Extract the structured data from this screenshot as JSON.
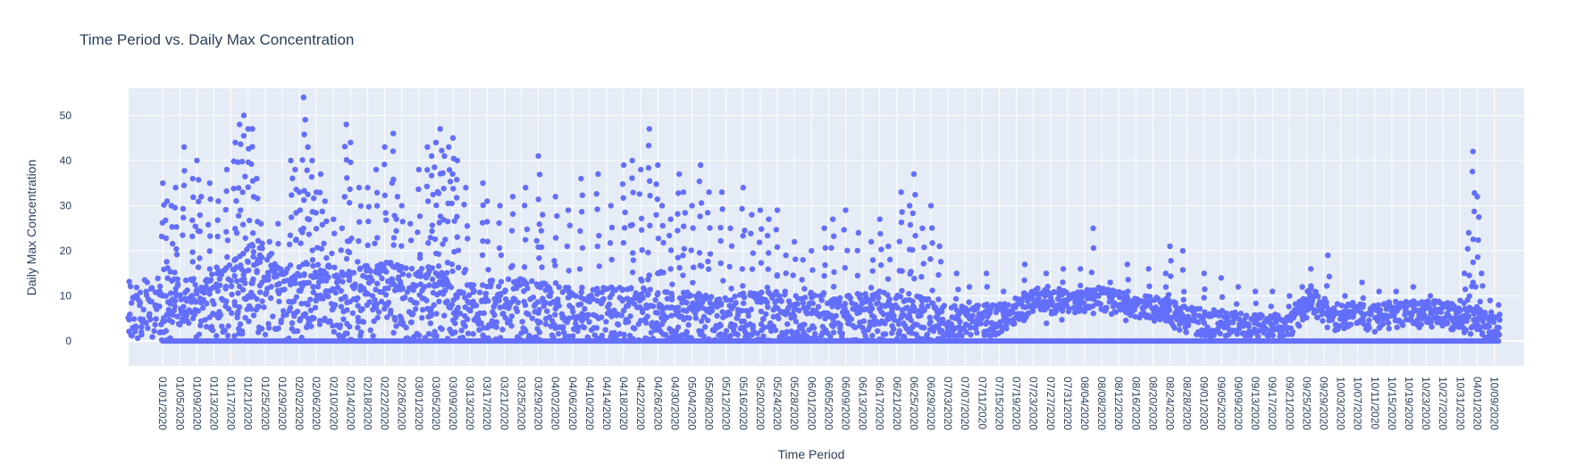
{
  "colors": {
    "plot_bg": "#e5ecf6",
    "grid": "#ffffff",
    "marker": "#636efa",
    "text": "#2a3f5f"
  },
  "chart_data": {
    "type": "scatter",
    "title": "Time Period vs. Daily Max Concentration",
    "xlabel": "Time Period",
    "ylabel": "Daily Max Concentration",
    "x_type": "date",
    "x_range": [
      "2019-12-24",
      "2020-11-15"
    ],
    "ylim": [
      -5.5,
      56
    ],
    "y_ticks": [
      0,
      10,
      20,
      30,
      40,
      50
    ],
    "grid": true,
    "legend": "none",
    "x_tick_labels": [
      "01/01/2020",
      "01/05/2020",
      "01/09/2020",
      "01/13/2020",
      "01/17/2020",
      "01/21/2020",
      "01/25/2020",
      "01/29/2020",
      "02/02/2020",
      "02/06/2020",
      "02/10/2020",
      "02/14/2020",
      "02/18/2020",
      "02/22/2020",
      "02/26/2020",
      "03/01/2020",
      "03/05/2020",
      "03/09/2020",
      "03/13/2020",
      "03/17/2020",
      "03/21/2020",
      "03/25/2020",
      "03/29/2020",
      "04/02/2020",
      "04/06/2020",
      "04/10/2020",
      "04/14/2020",
      "04/18/2020",
      "04/22/2020",
      "04/26/2020",
      "04/30/2020",
      "05/04/2020",
      "05/08/2020",
      "05/12/2020",
      "05/16/2020",
      "05/20/2020",
      "05/24/2020",
      "05/28/2020",
      "06/01/2020",
      "06/05/2020",
      "06/09/2020",
      "06/13/2020",
      "06/17/2020",
      "06/21/2020",
      "06/25/2020",
      "06/29/2020",
      "07/03/2020",
      "07/07/2020",
      "07/11/2020",
      "07/15/2020",
      "07/19/2020",
      "07/23/2020",
      "07/27/2020",
      "07/31/2020",
      "08/04/2020",
      "08/08/2020",
      "08/12/2020",
      "08/16/2020",
      "08/20/2020",
      "08/24/2020",
      "08/28/2020",
      "09/01/2020",
      "09/05/2020",
      "09/09/2020",
      "09/13/2020",
      "09/17/2020",
      "09/21/2020",
      "09/25/2020",
      "09/29/2020",
      "10/03/2020",
      "10/07/2020",
      "10/11/2020",
      "10/15/2020",
      "10/19/2020",
      "10/23/2020",
      "10/27/2020",
      "10/31/2020",
      "04/01/2020",
      "10/09/2020"
    ],
    "upper_series": {
      "x": [
        "2020-01-01",
        "2020-01-02",
        "2020-01-03",
        "2020-01-04",
        "2020-01-06",
        "2020-01-08",
        "2020-01-09",
        "2020-01-10",
        "2020-01-12",
        "2020-01-14",
        "2020-01-16",
        "2020-01-18",
        "2020-01-19",
        "2020-01-20",
        "2020-01-21",
        "2020-01-22",
        "2020-01-23",
        "2020-01-24",
        "2020-01-26",
        "2020-01-28",
        "2020-01-31",
        "2020-02-01",
        "2020-02-02",
        "2020-02-03",
        "2020-02-04",
        "2020-02-05",
        "2020-02-06",
        "2020-02-07",
        "2020-02-08",
        "2020-02-10",
        "2020-02-12",
        "2020-02-13",
        "2020-02-14",
        "2020-02-16",
        "2020-02-18",
        "2020-02-20",
        "2020-02-22",
        "2020-02-24",
        "2020-02-25",
        "2020-02-26",
        "2020-02-28",
        "2020-03-01",
        "2020-03-03",
        "2020-03-04",
        "2020-03-05",
        "2020-03-06",
        "2020-03-07",
        "2020-03-08",
        "2020-03-09",
        "2020-03-10",
        "2020-03-12",
        "2020-03-16",
        "2020-03-17",
        "2020-03-20",
        "2020-03-23",
        "2020-03-26",
        "2020-03-29",
        "2020-03-30",
        "2020-04-02",
        "2020-04-05",
        "2020-04-08",
        "2020-04-12",
        "2020-04-15",
        "2020-04-18",
        "2020-04-20",
        "2020-04-22",
        "2020-04-24",
        "2020-04-26",
        "2020-04-27",
        "2020-04-29",
        "2020-05-01",
        "2020-05-02",
        "2020-05-04",
        "2020-05-06",
        "2020-05-08",
        "2020-05-11",
        "2020-05-13",
        "2020-05-16",
        "2020-05-18",
        "2020-05-20",
        "2020-05-22",
        "2020-05-24",
        "2020-05-26",
        "2020-05-28",
        "2020-05-30",
        "2020-06-01",
        "2020-06-04",
        "2020-06-06",
        "2020-06-09",
        "2020-06-12",
        "2020-06-15",
        "2020-06-17",
        "2020-06-19",
        "2020-06-22",
        "2020-06-24",
        "2020-06-25",
        "2020-06-27",
        "2020-06-29",
        "2020-07-01",
        "2020-07-05",
        "2020-07-08",
        "2020-07-12",
        "2020-07-16",
        "2020-07-21",
        "2020-07-26",
        "2020-07-30",
        "2020-08-03",
        "2020-08-06",
        "2020-08-10",
        "2020-08-14",
        "2020-08-19",
        "2020-08-23",
        "2020-08-24",
        "2020-08-27",
        "2020-09-01",
        "2020-09-05",
        "2020-09-09",
        "2020-09-13",
        "2020-09-17",
        "2020-09-21",
        "2020-09-24",
        "2020-09-26",
        "2020-09-30",
        "2020-10-04",
        "2020-10-08",
        "2020-10-12",
        "2020-10-16",
        "2020-10-20",
        "2020-10-24",
        "2020-10-28",
        "2020-10-31",
        "2020-11-01",
        "2020-11-02",
        "2020-11-03",
        "2020-11-04",
        "2020-11-05",
        "2020-11-07",
        "2020-11-09"
      ],
      "y": [
        35,
        31,
        30,
        34,
        43,
        36,
        40,
        32,
        35,
        31,
        38,
        44,
        48,
        50,
        47,
        47,
        36,
        26,
        22,
        26,
        40,
        38,
        33,
        54,
        43,
        40,
        33,
        37,
        31,
        27,
        25,
        48,
        44,
        34,
        34,
        38,
        43,
        46,
        32,
        30,
        26,
        38,
        43,
        41,
        44,
        47,
        41,
        43,
        45,
        40,
        34,
        35,
        31,
        30,
        32,
        34,
        41,
        28,
        32,
        29,
        36,
        37,
        30,
        39,
        40,
        38,
        47,
        39,
        30,
        27,
        37,
        33,
        30,
        39,
        33,
        33,
        25,
        34,
        28,
        29,
        27,
        29,
        19,
        22,
        18,
        20,
        25,
        27,
        29,
        24,
        22,
        27,
        21,
        33,
        30,
        37,
        25,
        30,
        21,
        15,
        12,
        15,
        11,
        17,
        15,
        16,
        16,
        25,
        13,
        17,
        16,
        15,
        21,
        20,
        15,
        14,
        12,
        11,
        11,
        10,
        12,
        16,
        19,
        10,
        13,
        11,
        11,
        12,
        10,
        8,
        9,
        15,
        24,
        42,
        32,
        15,
        9,
        8
      ]
    },
    "mid_series": {
      "x": [
        "2020-01-01",
        "2020-01-05",
        "2020-01-10",
        "2020-01-15",
        "2020-01-20",
        "2020-01-25",
        "2020-01-30",
        "2020-02-04",
        "2020-02-09",
        "2020-02-14",
        "2020-02-19",
        "2020-02-24",
        "2020-02-29",
        "2020-03-05",
        "2020-03-10",
        "2020-03-15",
        "2020-03-20",
        "2020-03-25",
        "2020-03-30",
        "2020-04-04",
        "2020-04-09",
        "2020-04-14",
        "2020-04-19",
        "2020-04-24",
        "2020-04-29",
        "2020-05-04",
        "2020-05-09",
        "2020-05-14",
        "2020-05-19",
        "2020-05-24",
        "2020-05-29",
        "2020-06-03",
        "2020-06-08",
        "2020-06-13",
        "2020-06-18",
        "2020-06-23",
        "2020-06-28",
        "2020-07-03",
        "2020-07-08",
        "2020-07-13",
        "2020-07-18",
        "2020-07-23",
        "2020-07-28",
        "2020-08-02",
        "2020-08-07",
        "2020-08-12",
        "2020-08-17",
        "2020-08-22",
        "2020-08-27",
        "2020-09-01",
        "2020-09-06",
        "2020-09-11",
        "2020-09-16",
        "2020-09-21",
        "2020-09-26",
        "2020-10-01",
        "2020-10-06",
        "2020-10-11",
        "2020-10-16",
        "2020-10-21",
        "2020-10-26",
        "2020-10-31",
        "2020-11-05",
        "2020-11-09"
      ],
      "y": [
        7,
        9,
        8,
        11,
        12,
        14,
        9,
        10,
        11,
        9,
        10,
        12,
        9,
        10,
        8,
        7,
        8,
        8,
        7,
        6,
        6,
        7,
        7,
        7,
        6,
        6,
        5,
        5,
        6,
        6,
        5,
        6,
        6,
        6,
        6,
        5,
        5,
        4,
        4,
        4,
        6,
        9,
        9,
        9,
        10,
        9,
        8,
        7,
        5,
        4,
        4,
        3,
        3,
        4,
        9,
        5,
        6,
        5,
        6,
        6,
        6,
        5,
        4,
        3
      ]
    },
    "range": {
      "high": [
        14,
        15,
        14,
        16,
        20,
        22,
        16,
        18,
        17,
        16,
        17,
        18,
        16,
        17,
        14,
        13,
        14,
        14,
        13,
        12,
        12,
        12,
        12,
        12,
        11,
        11,
        10,
        10,
        11,
        11,
        10,
        11,
        11,
        11,
        11,
        10,
        10,
        8,
        8,
        8,
        9,
        12,
        12,
        11,
        12,
        11,
        10,
        10,
        8,
        7,
        7,
        6,
        6,
        7,
        12,
        8,
        9,
        8,
        9,
        9,
        9,
        8,
        7,
        6
      ],
      "low": [
        0,
        0,
        1,
        1,
        1,
        1,
        0,
        1,
        1,
        0,
        1,
        1,
        0,
        1,
        0,
        0,
        0,
        0,
        0,
        0,
        0,
        0,
        0,
        0,
        0,
        0,
        0,
        0,
        0,
        0,
        0,
        0,
        0,
        0,
        0,
        0,
        0,
        1,
        1,
        1,
        3,
        6,
        6,
        6,
        7,
        6,
        5,
        4,
        2,
        1,
        1,
        1,
        1,
        1,
        6,
        2,
        3,
        2,
        3,
        3,
        3,
        2,
        1,
        0
      ]
    },
    "zero_baseline": {
      "x_start": "2020-01-01",
      "x_end": "2020-11-09",
      "y": 0
    }
  }
}
